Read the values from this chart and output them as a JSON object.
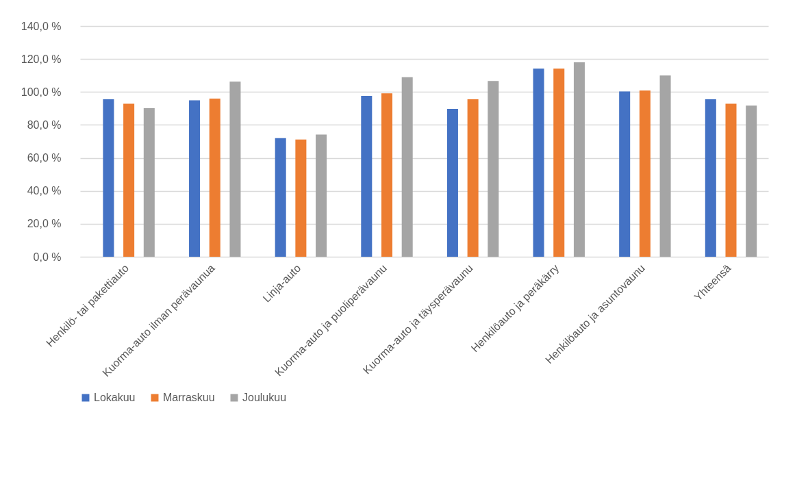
{
  "chart_data": {
    "type": "bar",
    "categories": [
      "Henkilö- tai pakettiauto",
      "Kuorma-auto ilman perävaunua",
      "Linja-auto",
      "Kuorma-auto ja puoliperävaunu",
      "Kuorma-auto ja täysperävaunu",
      "Henkilöauto ja peräkärry",
      "Henkilöauto ja asuntovaunu",
      "Yhteensä"
    ],
    "series": [
      {
        "name": "Lokakuu",
        "color": "#4472c4",
        "values": [
          95.5,
          94.9,
          72.0,
          97.6,
          89.7,
          114.1,
          100.3,
          95.5
        ]
      },
      {
        "name": "Marraskuu",
        "color": "#ed7d31",
        "values": [
          92.8,
          96.0,
          71.1,
          99.2,
          95.5,
          114.1,
          100.8,
          92.8
        ]
      },
      {
        "name": "Joulukuu",
        "color": "#a5a5a5",
        "values": [
          90.1,
          106.2,
          74.2,
          108.9,
          106.7,
          118.0,
          110.0,
          91.7
        ]
      }
    ],
    "ylim": [
      0,
      140
    ],
    "yticks": [
      {
        "value": 0,
        "label": "0,0 %"
      },
      {
        "value": 20,
        "label": "20,0 %"
      },
      {
        "value": 40,
        "label": "40,0 %"
      },
      {
        "value": 60,
        "label": "60,0 %"
      },
      {
        "value": 80,
        "label": "80,0 %"
      },
      {
        "value": 100,
        "label": "100,0 %"
      },
      {
        "value": 120,
        "label": "120,0 %"
      },
      {
        "value": 140,
        "label": "140,0 %"
      }
    ],
    "grid": "y",
    "legend": "bottom"
  }
}
